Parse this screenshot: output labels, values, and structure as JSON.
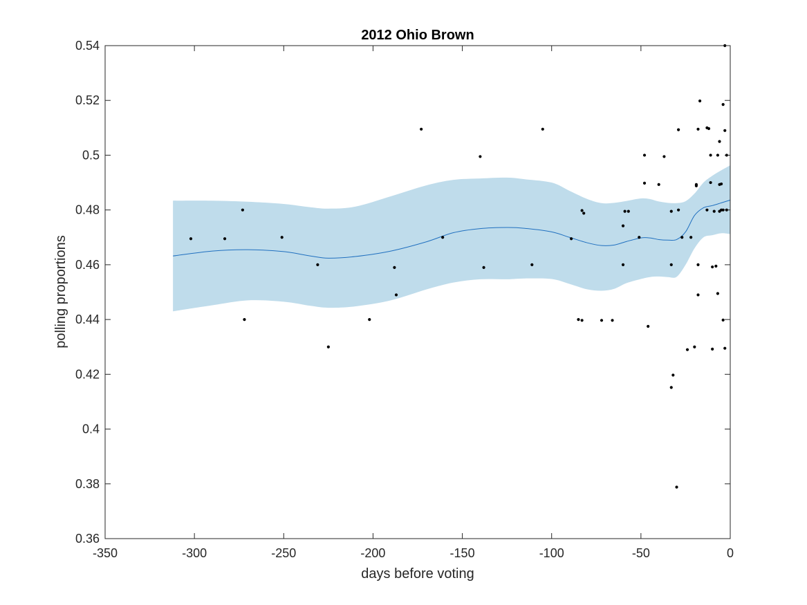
{
  "chart_data": {
    "type": "scatter",
    "title": "2012 Ohio Brown",
    "xlabel": "days before voting",
    "ylabel": "polling proportions",
    "xlim": [
      -350,
      0
    ],
    "ylim": [
      0.36,
      0.54
    ],
    "xticks": [
      -350,
      -300,
      -250,
      -200,
      -150,
      -100,
      -50,
      0
    ],
    "xtick_labels": [
      "-350",
      "-300",
      "-250",
      "-200",
      "-150",
      "-100",
      "-50",
      "0"
    ],
    "yticks": [
      0.36,
      0.38,
      0.4,
      0.42,
      0.44,
      0.46,
      0.48,
      0.5,
      0.52,
      0.54
    ],
    "ytick_labels": [
      "0.36",
      "0.38",
      "0.4",
      "0.42",
      "0.44",
      "0.46",
      "0.48",
      "0.5",
      "0.52",
      "0.54"
    ],
    "grid": false,
    "colors": {
      "points": "#000000",
      "trend": "#1f6fbf",
      "band": "#bfdceb",
      "axes": "#262626"
    },
    "polls": {
      "x": [
        -302,
        -283,
        -273,
        -272,
        -251,
        -231,
        -225,
        -202,
        -188,
        -187,
        -173,
        -161,
        -140,
        -138,
        -111,
        -105,
        -89,
        -85,
        -83,
        -83,
        -82,
        -72,
        -66,
        -60,
        -60,
        -59,
        -57,
        -51,
        -48,
        -48,
        -46,
        -40,
        -37,
        -33,
        -33,
        -33,
        -32,
        -30,
        -29,
        -29,
        -27,
        -24,
        -22,
        -20,
        -19,
        -19,
        -18,
        -18,
        -18,
        -17,
        -13,
        -13,
        -12,
        -11,
        -11,
        -10,
        -10,
        -9,
        -8,
        -7,
        -7,
        -6,
        -6,
        -6,
        -5,
        -5,
        -4,
        -4,
        -4,
        -3,
        -3,
        -3,
        -2,
        -2
      ],
      "y": [
        0.4695,
        0.4695,
        0.48,
        0.44,
        0.47,
        0.46,
        0.43,
        0.44,
        0.459,
        0.449,
        0.5095,
        0.47,
        0.4995,
        0.459,
        0.46,
        0.5095,
        0.4695,
        0.44,
        0.4798,
        0.4397,
        0.4788,
        0.4397,
        0.4397,
        0.4742,
        0.46,
        0.4795,
        0.4795,
        0.47,
        0.5,
        0.4898,
        0.4375,
        0.4893,
        0.4995,
        0.46,
        0.4795,
        0.4152,
        0.4197,
        0.3788,
        0.48,
        0.5093,
        0.47,
        0.429,
        0.47,
        0.43,
        0.4893,
        0.4888,
        0.46,
        0.5095,
        0.449,
        0.5198,
        0.48,
        0.51,
        0.5097,
        0.49,
        0.5,
        0.4592,
        0.4292,
        0.4795,
        0.4595,
        0.5,
        0.4495,
        0.4795,
        0.505,
        0.4893,
        0.48,
        0.4895,
        0.4398,
        0.48,
        0.5185,
        0.4295,
        0.509,
        0.54,
        0.5,
        0.48
      ]
    },
    "trend": {
      "x": [
        -312,
        -290,
        -270,
        -250,
        -235,
        -225,
        -210,
        -190,
        -170,
        -155,
        -140,
        -125,
        -115,
        -100,
        -90,
        -80,
        -72,
        -65,
        -58,
        -50,
        -45,
        -40,
        -35,
        -30,
        -25,
        -20,
        -15,
        -10,
        -5,
        0
      ],
      "y": [
        0.4632,
        0.465,
        0.4655,
        0.4648,
        0.4632,
        0.4624,
        0.463,
        0.465,
        0.4684,
        0.4717,
        0.4732,
        0.4736,
        0.4733,
        0.472,
        0.47,
        0.468,
        0.467,
        0.4672,
        0.4685,
        0.4698,
        0.4698,
        0.4692,
        0.469,
        0.4692,
        0.472,
        0.478,
        0.4808,
        0.4816,
        0.4826,
        0.4836
      ]
    },
    "confidence_band": {
      "x": [
        -312,
        -290,
        -270,
        -250,
        -235,
        -225,
        -210,
        -190,
        -170,
        -155,
        -140,
        -125,
        -115,
        -100,
        -90,
        -80,
        -72,
        -65,
        -58,
        -50,
        -45,
        -40,
        -35,
        -30,
        -25,
        -20,
        -15,
        -10,
        -5,
        0
      ],
      "upper": [
        0.4834,
        0.4834,
        0.483,
        0.4822,
        0.481,
        0.4805,
        0.4812,
        0.485,
        0.489,
        0.491,
        0.4915,
        0.4918,
        0.4912,
        0.49,
        0.487,
        0.484,
        0.4825,
        0.4826,
        0.4833,
        0.4842,
        0.484,
        0.4831,
        0.4826,
        0.4825,
        0.4832,
        0.486,
        0.49,
        0.4925,
        0.4945,
        0.4963
      ],
      "lower": [
        0.443,
        0.4452,
        0.447,
        0.4465,
        0.445,
        0.4443,
        0.4448,
        0.447,
        0.451,
        0.4535,
        0.4547,
        0.4547,
        0.455,
        0.4548,
        0.453,
        0.451,
        0.4505,
        0.4512,
        0.4533,
        0.4548,
        0.4555,
        0.4557,
        0.4555,
        0.4556,
        0.46,
        0.466,
        0.47,
        0.4708,
        0.4715,
        0.4712
      ]
    }
  }
}
